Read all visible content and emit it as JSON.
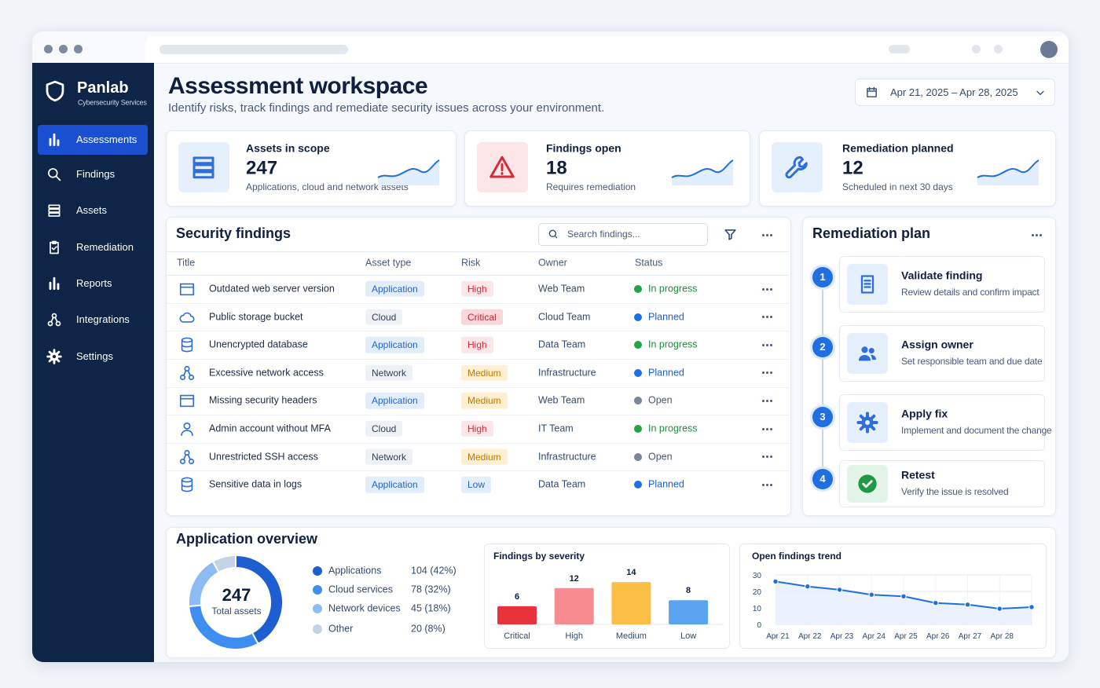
{
  "brand": {
    "name": "Panlab",
    "tagline": "Cybersecurity Services"
  },
  "nav": [
    "Assessments",
    "Findings",
    "Assets",
    "Remediation",
    "Reports",
    "Integrations",
    "Settings"
  ],
  "header": {
    "title": "Assessment workspace",
    "subtitle": "Identify risks, track findings and remediate security issues across your environment.",
    "date_range": "Apr 21, 2025 – Apr 28, 2025"
  },
  "kpis": [
    {
      "label": "Assets in scope",
      "value": 247,
      "description": "Applications, cloud and network assets"
    },
    {
      "label": "Findings open",
      "value": 18,
      "description": "Requires remediation"
    },
    {
      "label": "Remediation planned",
      "value": 12,
      "description": "Scheduled in next 30 days"
    }
  ],
  "findings": {
    "title": "Security findings",
    "search_placeholder": "Search findings...",
    "columns": [
      "Title",
      "Asset type",
      "Risk",
      "Owner",
      "Status"
    ],
    "rows": [
      {
        "title": "Outdated web server version",
        "asset_type": "Application",
        "risk": "High",
        "owner": "Web Team",
        "status": "In progress"
      },
      {
        "title": "Public storage bucket",
        "asset_type": "Cloud",
        "risk": "Critical",
        "owner": "Cloud Team",
        "status": "Planned"
      },
      {
        "title": "Unencrypted database",
        "asset_type": "Application",
        "risk": "High",
        "owner": "Data Team",
        "status": "In progress"
      },
      {
        "title": "Excessive network access",
        "asset_type": "Network",
        "risk": "Medium",
        "owner": "Infrastructure",
        "status": "Planned"
      },
      {
        "title": "Missing security headers",
        "asset_type": "Application",
        "risk": "Medium",
        "owner": "Web Team",
        "status": "Open"
      },
      {
        "title": "Admin account without MFA",
        "asset_type": "Cloud",
        "risk": "High",
        "owner": "IT Team",
        "status": "In progress"
      },
      {
        "title": "Unrestricted SSH access",
        "asset_type": "Network",
        "risk": "Medium",
        "owner": "Infrastructure",
        "status": "Open"
      },
      {
        "title": "Sensitive data in logs",
        "asset_type": "Application",
        "risk": "Low",
        "owner": "Data Team",
        "status": "Planned"
      }
    ]
  },
  "styles": {
    "asset": {
      "Application": [
        "#2563c9",
        "#e3eefc"
      ],
      "Cloud": [
        "#334155",
        "#eef1f5"
      ],
      "Network": [
        "#334155",
        "#eef1f5"
      ]
    },
    "risk": {
      "High": [
        "#d42a3a",
        "#fde6e8"
      ],
      "Critical": [
        "#c81e2e",
        "#fbd6da"
      ],
      "Medium": [
        "#c27700",
        "#fff0d4"
      ],
      "Low": [
        "#2563c9",
        "#e3eefc"
      ]
    },
    "status": {
      "In progress": [
        "#1f8a3e",
        "#22a447"
      ],
      "Planned": [
        "#1f5fd6",
        "#1f6fe0"
      ],
      "Open": [
        "#4a5568",
        "#7a8699"
      ]
    }
  },
  "remediation": {
    "title": "Remediation plan",
    "steps": [
      {
        "number": 1,
        "title": "Validate finding",
        "description": "Review details and confirm impact"
      },
      {
        "number": 2,
        "title": "Assign owner",
        "description": "Set responsible team and due date"
      },
      {
        "number": 3,
        "title": "Apply fix",
        "description": "Implement and document the change"
      },
      {
        "number": 4,
        "title": "Retest",
        "description": "Verify the issue is resolved"
      }
    ]
  },
  "overview": {
    "title": "Application overview"
  },
  "chart_data": [
    {
      "type": "pie",
      "center_value": 247,
      "center_label": "Total assets",
      "categories": [
        "Applications",
        "Cloud services",
        "Network devices",
        "Other"
      ],
      "values": [
        104,
        78,
        45,
        20
      ],
      "value_labels": [
        "104 (42%)",
        "78 (32%)",
        "45 (18%)",
        "20 (8%)"
      ],
      "colors": [
        "#1d5fd1",
        "#3d8ef0",
        "#8dbcf5",
        "#c5d3e6"
      ]
    },
    {
      "type": "bar",
      "title": "Findings by severity",
      "categories": [
        "Critical",
        "High",
        "Medium",
        "Low"
      ],
      "values": [
        6,
        12,
        14,
        8
      ],
      "colors": [
        "#e8323c",
        "#f88b8f",
        "#fbbf45",
        "#5aa3f0"
      ]
    },
    {
      "type": "line",
      "title": "Open findings trend",
      "categories": [
        "Apr 21",
        "Apr 22",
        "Apr 23",
        "Apr 24",
        "Apr 25",
        "Apr 26",
        "Apr 27",
        "Apr 28",
        null
      ],
      "values": [
        26,
        23,
        21,
        18,
        17,
        13,
        12,
        9.5,
        10.5
      ],
      "ylim": [
        0,
        30
      ],
      "yticks": [
        0,
        10,
        20,
        30
      ],
      "grid": true,
      "color": "#1f6fe0"
    }
  ]
}
